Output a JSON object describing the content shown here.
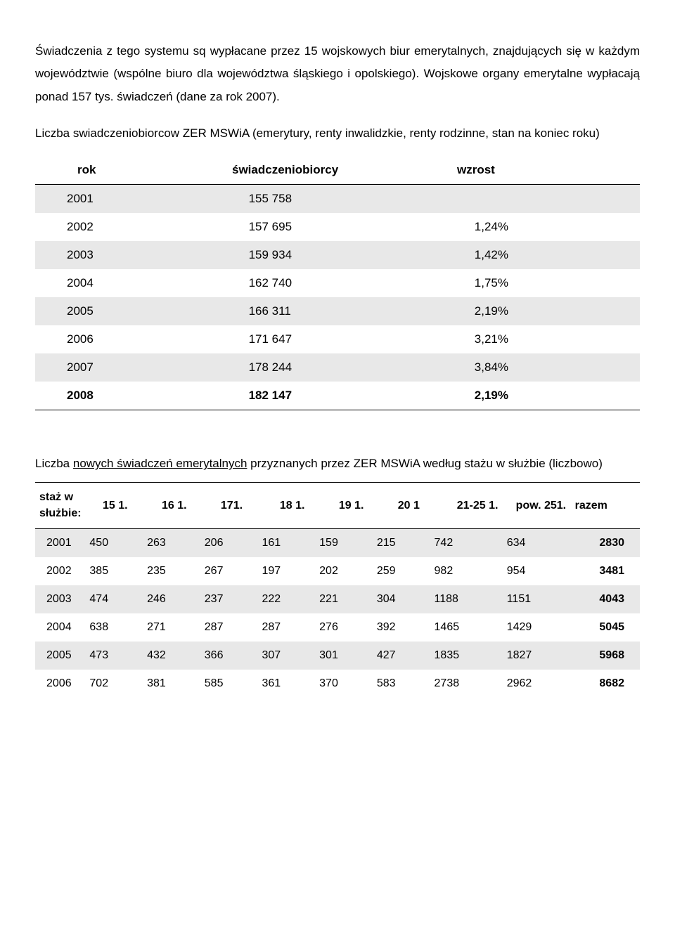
{
  "para1": "Świadczenia z tego systemu sq wypłacane przez 15 wojskowych biur emerytalnych, znajdujących się w każdym województwie (wspólne biuro dla województwa śląskiego i opolskiego). Wojskowe organy emerytalne wypłacają ponad 157 tys. świadczeń (dane za rok 2007).",
  "para2": "Liczba swiadczeniobiorcow ZER MSWiA (emerytury, renty inwalidzkie, renty rodzinne, stan na koniec roku)",
  "t1_head": {
    "c1": "rok",
    "c2": "świadczeniobiorcy",
    "c3": "wzrost"
  },
  "t1": [
    {
      "year": "2001",
      "val": "155 758",
      "pct": "",
      "shaded": true
    },
    {
      "year": "2002",
      "val": "157 695",
      "pct": "1,24%",
      "shaded": false
    },
    {
      "year": "2003",
      "val": "159 934",
      "pct": "1,42%",
      "shaded": true
    },
    {
      "year": "2004",
      "val": "162 740",
      "pct": "1,75%",
      "shaded": false
    },
    {
      "year": "2005",
      "val": "166 311",
      "pct": "2,19%",
      "shaded": true
    },
    {
      "year": "2006",
      "val": "171 647",
      "pct": "3,21%",
      "shaded": false
    },
    {
      "year": "2007",
      "val": "178 244",
      "pct": "3,84%",
      "shaded": true
    },
    {
      "year": "2008",
      "val": "182 147",
      "pct": "2,19%",
      "shaded": false,
      "bold": true
    }
  ],
  "para3_pre": "Liczba ",
  "para3_u": "nowych świadczeń emerytalnych",
  "para3_post": " przyznanych przez ZER MSWiA według stażu w służbie (liczbowo)",
  "staz_label1": "staż w",
  "staz_label2": "służbie:",
  "t2_head": [
    "15 1.",
    "16 1.",
    "171.",
    "18 1.",
    "19 1.",
    "20 1",
    "21-25 1.",
    "pow. 251.",
    "razem"
  ],
  "t2": [
    {
      "y": "2001",
      "d": [
        "450",
        "263",
        "206",
        "161",
        "159",
        "215",
        "742",
        "634"
      ],
      "tot": "2830",
      "shaded": true
    },
    {
      "y": "2002",
      "d": [
        "385",
        "235",
        "267",
        "197",
        "202",
        "259",
        "982",
        "954"
      ],
      "tot": "3481",
      "shaded": false
    },
    {
      "y": "2003",
      "d": [
        "474",
        "246",
        "237",
        "222",
        "221",
        "304",
        "1188",
        "1151"
      ],
      "tot": "4043",
      "shaded": true
    },
    {
      "y": "2004",
      "d": [
        "638",
        "271",
        "287",
        "287",
        "276",
        "392",
        "1465",
        "1429"
      ],
      "tot": "5045",
      "shaded": false
    },
    {
      "y": "2005",
      "d": [
        "473",
        "432",
        "366",
        "307",
        "301",
        "427",
        "1835",
        "1827"
      ],
      "tot": "5968",
      "shaded": true
    },
    {
      "y": "2006",
      "d": [
        "702",
        "381",
        "585",
        "361",
        "370",
        "583",
        "2738",
        "2962"
      ],
      "tot": "8682",
      "shaded": false
    }
  ],
  "colors": {
    "shaded_bg": "#e8e8e8",
    "text": "#000000",
    "page_bg": "#ffffff"
  }
}
